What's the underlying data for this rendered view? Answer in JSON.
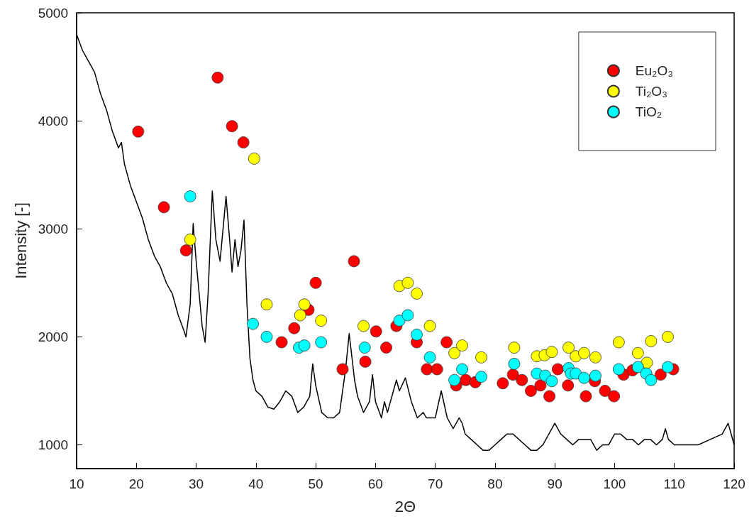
{
  "chart_data": {
    "type": "scatter",
    "xlabel": "2Θ",
    "ylabel": "Intensity [-]",
    "xlim": [
      10,
      120
    ],
    "xticks": [
      10,
      20,
      30,
      40,
      50,
      60,
      70,
      80,
      90,
      100,
      110,
      120
    ],
    "ylim": [
      780,
      5000
    ],
    "yticks": [
      1000,
      2000,
      3000,
      4000,
      5000
    ],
    "grid": false,
    "legend": "top right",
    "marker": "circle",
    "series": [
      {
        "type": "line",
        "color": "#000000",
        "marker": "none",
        "x": [
          10,
          11,
          12,
          13,
          14,
          15,
          16,
          17,
          17.5,
          18,
          19,
          20,
          21,
          22,
          23,
          24,
          25,
          26,
          27,
          28,
          28.3,
          29,
          29.5,
          30,
          31,
          31.5,
          32,
          32.7,
          33.3,
          34,
          35,
          35.6,
          36,
          36.5,
          37,
          37.5,
          38,
          38.5,
          39,
          39.5,
          40,
          41,
          42,
          43,
          44,
          45,
          46,
          47,
          48,
          49,
          49.5,
          50,
          51,
          52,
          53,
          54,
          55,
          55.6,
          56.5,
          57,
          58,
          59,
          59.5,
          60,
          61,
          61.5,
          62,
          63,
          63.5,
          64,
          65,
          66,
          67,
          68,
          68.5,
          70,
          71,
          72,
          73,
          74,
          74.5,
          75,
          76,
          77,
          78,
          79,
          80,
          81,
          82,
          83,
          84,
          85,
          86,
          87,
          88,
          89,
          90,
          91,
          92,
          93,
          94,
          95,
          96,
          97,
          98,
          99,
          100,
          101,
          102,
          103,
          104,
          105,
          106,
          107,
          108,
          108.5,
          109,
          110,
          112,
          114,
          116,
          118,
          119,
          119.5,
          120
        ],
        "values": [
          4800,
          4650,
          4550,
          4450,
          4250,
          4100,
          3900,
          3750,
          3800,
          3600,
          3400,
          3250,
          3100,
          2900,
          2750,
          2650,
          2500,
          2400,
          2200,
          2050,
          2000,
          2300,
          3050,
          2700,
          2100,
          1950,
          2400,
          3350,
          2900,
          2700,
          3300,
          2900,
          2600,
          2900,
          2650,
          2800,
          3080,
          2300,
          1800,
          1600,
          1500,
          1450,
          1350,
          1330,
          1400,
          1500,
          1450,
          1300,
          1350,
          1450,
          1750,
          1550,
          1300,
          1250,
          1250,
          1300,
          1700,
          2030,
          1600,
          1450,
          1300,
          1400,
          1650,
          1400,
          1250,
          1400,
          1300,
          1500,
          1600,
          1500,
          1620,
          1400,
          1250,
          1300,
          1250,
          1250,
          1500,
          1250,
          1150,
          1250,
          1200,
          1100,
          1050,
          1000,
          950,
          950,
          1000,
          1050,
          1100,
          1100,
          1050,
          1000,
          950,
          950,
          1000,
          1100,
          1200,
          1100,
          1050,
          1000,
          1050,
          1050,
          1050,
          950,
          1000,
          1000,
          1100,
          1100,
          1050,
          1050,
          1000,
          1050,
          1050,
          1000,
          1050,
          1150,
          1050,
          1000,
          1000,
          1000,
          1050,
          1100,
          1200,
          1100,
          1000
        ]
      },
      {
        "name": "Eu₂O₃",
        "color": "#ff0000",
        "x": [
          20.3,
          24.6,
          28.3,
          33.6,
          36,
          37.9,
          44.3,
          46.4,
          48.8,
          50,
          54.5,
          56.4,
          58.3,
          60.1,
          61.8,
          63.5,
          66.9,
          68.6,
          70.3,
          71.9,
          73.5,
          75.1,
          76.7,
          81.3,
          83,
          84.5,
          86,
          87.6,
          89.1,
          90.5,
          92.2,
          93.6,
          95.2,
          96.7,
          98.4,
          99.9,
          101.5,
          103,
          107.7,
          109.8
        ],
        "values": [
          3900,
          3200,
          2800,
          4400,
          3950,
          3800,
          1950,
          2080,
          2250,
          2500,
          1700,
          2700,
          1770,
          2050,
          1900,
          2100,
          1950,
          1700,
          1700,
          1950,
          1550,
          1600,
          1580,
          1570,
          1650,
          1600,
          1500,
          1550,
          1450,
          1700,
          1550,
          null,
          1450,
          1590,
          1500,
          1450,
          1650,
          1690,
          1650,
          1700
        ]
      },
      {
        "name": "Ti₂O₃",
        "color": "#ffff00",
        "x": [
          29,
          39.7,
          41.8,
          47.4,
          48.1,
          50.9,
          58,
          64,
          65.4,
          66.9,
          69.1,
          73.2,
          74.5,
          77.7,
          83.2,
          87,
          88.3,
          89.5,
          92.3,
          92.7,
          93.5,
          94.9,
          96.8,
          100.7,
          103.9,
          105.4,
          106.1,
          108.9
        ],
        "values": [
          2900,
          3650,
          2300,
          2200,
          2300,
          2150,
          2100,
          2470,
          2500,
          2400,
          2100,
          1850,
          1920,
          1810,
          1900,
          1820,
          1830,
          1860,
          1900,
          null,
          1820,
          1850,
          1810,
          1950,
          1850,
          1760,
          1960,
          2000
        ]
      },
      {
        "name": "TiO₂",
        "color": "#00ffff",
        "x": [
          29,
          39.5,
          41.8,
          47.2,
          48.1,
          50.9,
          58.2,
          64,
          65.4,
          66.9,
          69.1,
          73.2,
          74.5,
          77.7,
          83.2,
          87,
          88.4,
          89.5,
          92.3,
          92.7,
          93.5,
          94.9,
          96.8,
          100.7,
          103.9,
          105.3,
          106.1,
          108.9
        ],
        "values": [
          3300,
          2120,
          2000,
          1900,
          1920,
          1950,
          1900,
          2150,
          2200,
          2020,
          1810,
          1600,
          1700,
          1630,
          1750,
          1660,
          1640,
          1590,
          1710,
          1660,
          1660,
          1620,
          1640,
          1700,
          1720,
          1660,
          1600,
          1720
        ]
      }
    ]
  }
}
